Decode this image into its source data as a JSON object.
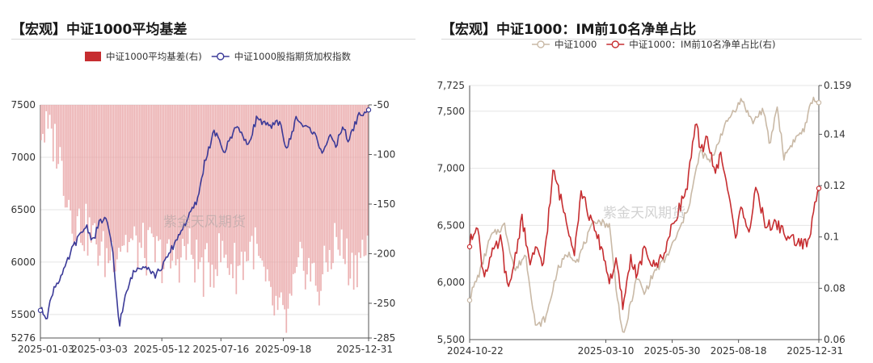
{
  "chart_data": [
    {
      "type": "bar+line",
      "title": "【宏观】中证1000平均基差",
      "legend": {
        "placement": "top",
        "items": [
          {
            "label": "中证1000平均基差(右)",
            "color": "#c62d30",
            "kind": "bar"
          },
          {
            "label": "中证1000股指期货加权指数",
            "color": "#3b3a98",
            "kind": "line"
          }
        ]
      },
      "x_ticks": [
        "2025-01-03",
        "2025-03-03",
        "2025-05-12",
        "2025-07-16",
        "2025-09-18",
        "2025-12-31"
      ],
      "y_left": {
        "min": 5276,
        "max": 7500,
        "ticks": [
          "7500",
          "7000",
          "6500",
          "6000",
          "5500",
          "5276"
        ]
      },
      "y_right": {
        "min": -285,
        "max": -50,
        "ticks": [
          "-50",
          "-100",
          "-150",
          "-200",
          "-250",
          "-285"
        ]
      },
      "watermark": "紫金天风期货",
      "series": [
        {
          "name": "中证1000平均基差(右)",
          "axis": "right",
          "kind": "bar",
          "x_frac": [
            0.0,
            0.05,
            0.1,
            0.15,
            0.2,
            0.25,
            0.3,
            0.35,
            0.4,
            0.45,
            0.5,
            0.55,
            0.6,
            0.65,
            0.7,
            0.75,
            0.8,
            0.85,
            0.9,
            0.95,
            1.0
          ],
          "values": [
            -72,
            -90,
            -165,
            -180,
            -205,
            -185,
            -195,
            -200,
            -210,
            -195,
            -220,
            -200,
            -215,
            -190,
            -250,
            -270,
            -205,
            -235,
            -185,
            -215,
            -190
          ]
        },
        {
          "name": "中证1000股指期货加权指数",
          "axis": "left",
          "kind": "line",
          "x_frac": [
            0.0,
            0.02,
            0.04,
            0.07,
            0.1,
            0.14,
            0.16,
            0.18,
            0.2,
            0.22,
            0.24,
            0.26,
            0.28,
            0.3,
            0.32,
            0.35,
            0.38,
            0.42,
            0.45,
            0.48,
            0.5,
            0.53,
            0.56,
            0.6,
            0.63,
            0.66,
            0.7,
            0.73,
            0.75,
            0.78,
            0.8,
            0.83,
            0.86,
            0.88,
            0.9,
            0.92,
            0.94,
            0.95,
            0.97,
            0.99,
            1.0
          ],
          "values": [
            5550,
            5480,
            5750,
            5900,
            6150,
            6350,
            6200,
            6380,
            6420,
            6100,
            5400,
            5680,
            5880,
            5950,
            5980,
            5870,
            6000,
            6250,
            6420,
            6600,
            6950,
            7250,
            7050,
            7320,
            7100,
            7380,
            7280,
            7350,
            7060,
            7380,
            7300,
            7250,
            7050,
            7200,
            7100,
            7300,
            7150,
            7250,
            7400,
            7430,
            7430
          ]
        }
      ]
    },
    {
      "type": "line",
      "title": "【宏观】中证1000：IM前10名净单占比",
      "legend": {
        "placement": "top",
        "items": [
          {
            "label": "中证1000",
            "color": "#c9b9a6",
            "kind": "line"
          },
          {
            "label": "中证1000：IM前10名净单占比(右)",
            "color": "#c62d30",
            "kind": "line"
          }
        ]
      },
      "x_ticks": [
        "2024-10-22",
        "2025-03-10",
        "2025-05-30",
        "2025-08-18",
        "2025-12-31"
      ],
      "y_left": {
        "min": 5500,
        "max": 7725,
        "ticks": [
          "7,725",
          "7,500",
          "7,000",
          "6,500",
          "6,000",
          "5,500"
        ]
      },
      "y_right": {
        "min": 0.06,
        "max": 0.159,
        "ticks": [
          "0.159",
          "0.14",
          "0.12",
          "0.1",
          "0.08",
          "0.06"
        ]
      },
      "watermark": "紫金天风期货",
      "series": [
        {
          "name": "中证1000",
          "axis": "left",
          "kind": "line",
          "x_frac": [
            0.0,
            0.03,
            0.06,
            0.1,
            0.13,
            0.16,
            0.19,
            0.22,
            0.25,
            0.28,
            0.31,
            0.33,
            0.36,
            0.4,
            0.42,
            0.44,
            0.46,
            0.48,
            0.5,
            0.53,
            0.56,
            0.6,
            0.63,
            0.66,
            0.69,
            0.72,
            0.75,
            0.78,
            0.81,
            0.84,
            0.86,
            0.88,
            0.9,
            0.93,
            0.96,
            0.98,
            1.0
          ],
          "values": [
            5870,
            6100,
            6400,
            6500,
            6100,
            6250,
            5600,
            5700,
            6100,
            6250,
            6200,
            6350,
            6550,
            6500,
            5950,
            5500,
            5800,
            6050,
            5900,
            6100,
            6200,
            6450,
            6700,
            7150,
            7050,
            7300,
            7480,
            7600,
            7400,
            7520,
            7200,
            7550,
            7100,
            7250,
            7350,
            7600,
            7580
          ]
        },
        {
          "name": "中证1000：IM前10名净单占比(右)",
          "axis": "right",
          "kind": "line",
          "x_frac": [
            0.0,
            0.02,
            0.04,
            0.06,
            0.09,
            0.11,
            0.13,
            0.15,
            0.17,
            0.19,
            0.21,
            0.24,
            0.27,
            0.3,
            0.32,
            0.35,
            0.38,
            0.4,
            0.42,
            0.44,
            0.46,
            0.48,
            0.5,
            0.53,
            0.56,
            0.59,
            0.62,
            0.65,
            0.66,
            0.68,
            0.7,
            0.72,
            0.74,
            0.76,
            0.78,
            0.8,
            0.82,
            0.85,
            0.88,
            0.91,
            0.94,
            0.97,
            1.0
          ],
          "values": [
            0.097,
            0.106,
            0.085,
            0.092,
            0.099,
            0.078,
            0.092,
            0.108,
            0.09,
            0.095,
            0.088,
            0.126,
            0.11,
            0.095,
            0.118,
            0.105,
            0.095,
            0.083,
            0.09,
            0.072,
            0.092,
            0.085,
            0.095,
            0.088,
            0.095,
            0.108,
            0.118,
            0.145,
            0.132,
            0.14,
            0.125,
            0.132,
            0.118,
            0.1,
            0.112,
            0.102,
            0.118,
            0.104,
            0.105,
            0.1,
            0.098,
            0.097,
            0.121
          ]
        }
      ]
    }
  ]
}
